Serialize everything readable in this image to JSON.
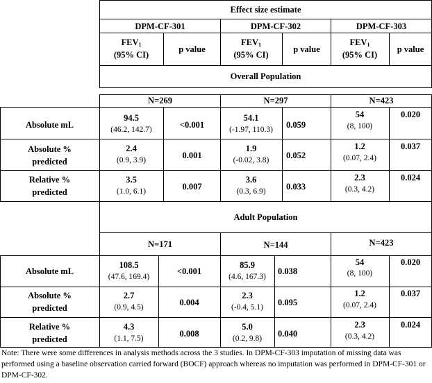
{
  "header": {
    "title": "Effect size estimate",
    "studies": [
      "DPM-CF-301",
      "DPM-CF-302",
      "DPM-CF-303"
    ],
    "fev_label": "FEV",
    "fev_sub": "1",
    "ci_label": "(95% CI)",
    "p_label": "p value"
  },
  "sections": [
    {
      "title": "Overall Population",
      "n": [
        "N=269",
        "N=297",
        "N=423"
      ],
      "rows": [
        {
          "label1": "Absolute mL",
          "label2": "",
          "cells": [
            {
              "est": "94.5",
              "ci": "(46.2, 142.7)",
              "p": "<0.001"
            },
            {
              "est": "54.1",
              "ci": "(-1.97, 110.3)",
              "p": "0.059"
            },
            {
              "est": "54",
              "ci": "(8, 100)",
              "p": "0.020"
            }
          ]
        },
        {
          "label1": "Absolute %",
          "label2": "predicted",
          "cells": [
            {
              "est": "2.4",
              "ci": "(0.9, 3.9)",
              "p": "0.001"
            },
            {
              "est": "1.9",
              "ci": "(-0.02, 3.8)",
              "p": "0.052"
            },
            {
              "est": "1.2",
              "ci": "(0.07, 2.4)",
              "p": "0.037"
            }
          ]
        },
        {
          "label1": "Relative %",
          "label2": "predicted",
          "cells": [
            {
              "est": "3.5",
              "ci": "(1.0, 6.1)",
              "p": "0.007"
            },
            {
              "est": "3.6",
              "ci": "(0.3, 6.9)",
              "p": "0.033"
            },
            {
              "est": "2.3",
              "ci": "(0.3, 4.2)",
              "p": "0.024"
            }
          ]
        }
      ]
    },
    {
      "title": "Adult Population",
      "n": [
        "N=171",
        "N=144",
        "N=423"
      ],
      "rows": [
        {
          "label1": "Absolute mL",
          "label2": "",
          "cells": [
            {
              "est": "108.5",
              "ci": "(47.6, 169.4)",
              "p": "<0.001"
            },
            {
              "est": "85.9",
              "ci": "(4.6, 167.3)",
              "p": "0.038"
            },
            {
              "est": "54",
              "ci": "(8, 100)",
              "p": "0.020"
            }
          ]
        },
        {
          "label1": "Absolute %",
          "label2": "predicted",
          "cells": [
            {
              "est": "2.7",
              "ci": "(0.9, 4.5)",
              "p": "0.004"
            },
            {
              "est": "2.3",
              "ci": "(-0.4, 5.1)",
              "p": "0.095"
            },
            {
              "est": "1.2",
              "ci": "(0.07, 2.4)",
              "p": "0.037"
            }
          ]
        },
        {
          "label1": "Relative %",
          "label2": "predicted",
          "cells": [
            {
              "est": "4.3",
              "ci": "(1.1, 7.5)",
              "p": "0.008"
            },
            {
              "est": "5.0",
              "ci": "(0.2, 9.8)",
              "p": "0.040"
            },
            {
              "est": "2.3",
              "ci": "(0.3, 4.2)",
              "p": "0.024"
            }
          ]
        }
      ]
    }
  ],
  "note": "Note: There were some differences in analysis methods across the 3 studies.  In DPM-CF-303 imputation of missing data was performed using a baseline observation carried forward (BOCF) approach whereas no imputation was performed in DPM-CF-301 or DPM-CF-302."
}
